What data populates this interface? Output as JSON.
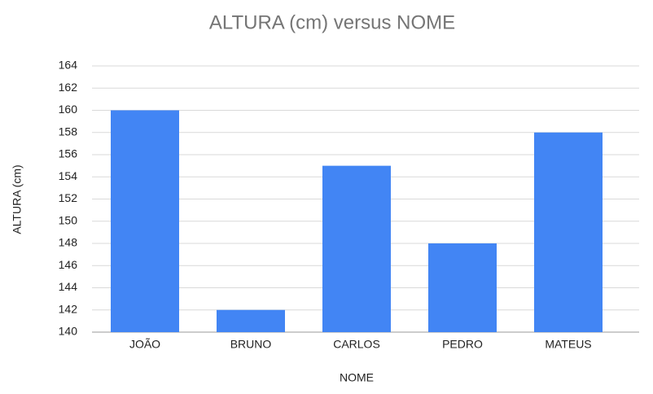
{
  "chart_data": {
    "type": "bar",
    "title": "ALTURA (cm) versus NOME",
    "x_label": "NOME",
    "y_label": "ALTURA (cm)",
    "categories": [
      "JOÃO",
      "BRUNO",
      "CARLOS",
      "PEDRO",
      "MATEUS"
    ],
    "values": [
      160,
      142,
      155,
      148,
      158
    ],
    "color": "#4285f4",
    "ylim": [
      140,
      164
    ],
    "yticks": [
      140,
      142,
      144,
      146,
      148,
      150,
      152,
      154,
      156,
      158,
      160,
      162,
      164
    ],
    "grid": true
  }
}
